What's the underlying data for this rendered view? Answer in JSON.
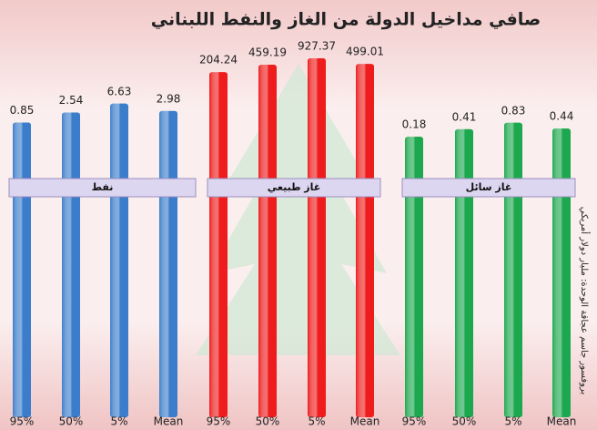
{
  "title": "صافي مداخيل الدولة من الغاز والنفط اللبناني",
  "note": "بروفسور جاسم عجاقة الوحدة: مليار دولار أمريكي",
  "chart_data": [
    {
      "type": "bar",
      "label": "نفط",
      "categories": [
        "95%",
        "50%",
        "5%",
        "Mean"
      ],
      "values": [
        0.85,
        2.54,
        6.63,
        2.98
      ],
      "color": "#3b7dcb",
      "log": true,
      "ylim": [
        1e-14,
        10000
      ]
    },
    {
      "type": "bar",
      "label": "غاز طبيعي",
      "categories": [
        "95%",
        "50%",
        "5%",
        "Mean"
      ],
      "values": [
        204.24,
        459.19,
        927.37,
        499.01
      ],
      "color": "#ee1c1c",
      "log": true,
      "ylim": [
        1e-14,
        10000
      ]
    },
    {
      "type": "bar",
      "label": "غاز سائل",
      "categories": [
        "95%",
        "50%",
        "5%",
        "Mean"
      ],
      "values": [
        0.18,
        0.41,
        0.83,
        0.44
      ],
      "color": "#1ca84e",
      "log": true,
      "ylim": [
        1e-14,
        10000
      ]
    }
  ]
}
